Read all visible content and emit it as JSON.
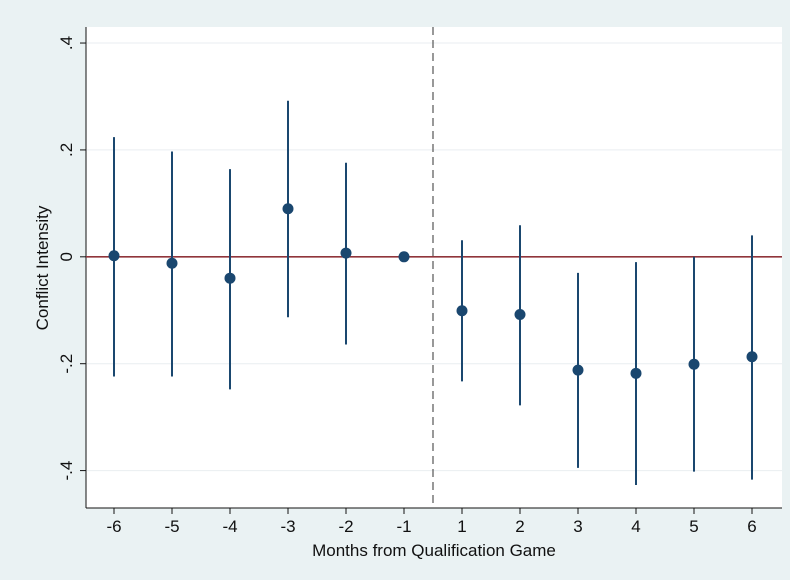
{
  "chart_data": {
    "type": "scatter",
    "title": "",
    "xlabel": "Months from Qualification Game",
    "ylabel": "Conflict Intensity",
    "categories": [
      "-6",
      "-5",
      "-4",
      "-3",
      "-2",
      "-1",
      "1",
      "2",
      "3",
      "4",
      "5",
      "6"
    ],
    "estimates": [
      0.002,
      -0.012,
      -0.04,
      0.09,
      0.007,
      0.0,
      -0.101,
      -0.108,
      -0.212,
      -0.218,
      -0.201,
      -0.187
    ],
    "ci_lower": [
      -0.224,
      -0.224,
      -0.248,
      -0.113,
      -0.164,
      0.0,
      -0.233,
      -0.278,
      -0.395,
      -0.427,
      -0.402,
      -0.417
    ],
    "ci_upper": [
      0.224,
      0.197,
      0.164,
      0.292,
      0.176,
      0.0,
      0.031,
      0.059,
      -0.03,
      -0.01,
      0.0,
      0.04
    ],
    "ylim": [
      -0.47,
      0.43
    ],
    "yticks": [
      -0.4,
      -0.2,
      0,
      0.2,
      0.4
    ],
    "ytick_labels": [
      "-.4",
      "-.2",
      "0",
      ".2",
      ".4"
    ],
    "reference_line_y": 0,
    "vertical_line_between": [
      "-1",
      "1"
    ],
    "grid": true,
    "colors": {
      "background": "#eaf2f3",
      "plot_background": "#ffffff",
      "grid": "#e9eef0",
      "points": "#1a476f",
      "reference_line": "#90353b",
      "divider": "#555555"
    }
  }
}
